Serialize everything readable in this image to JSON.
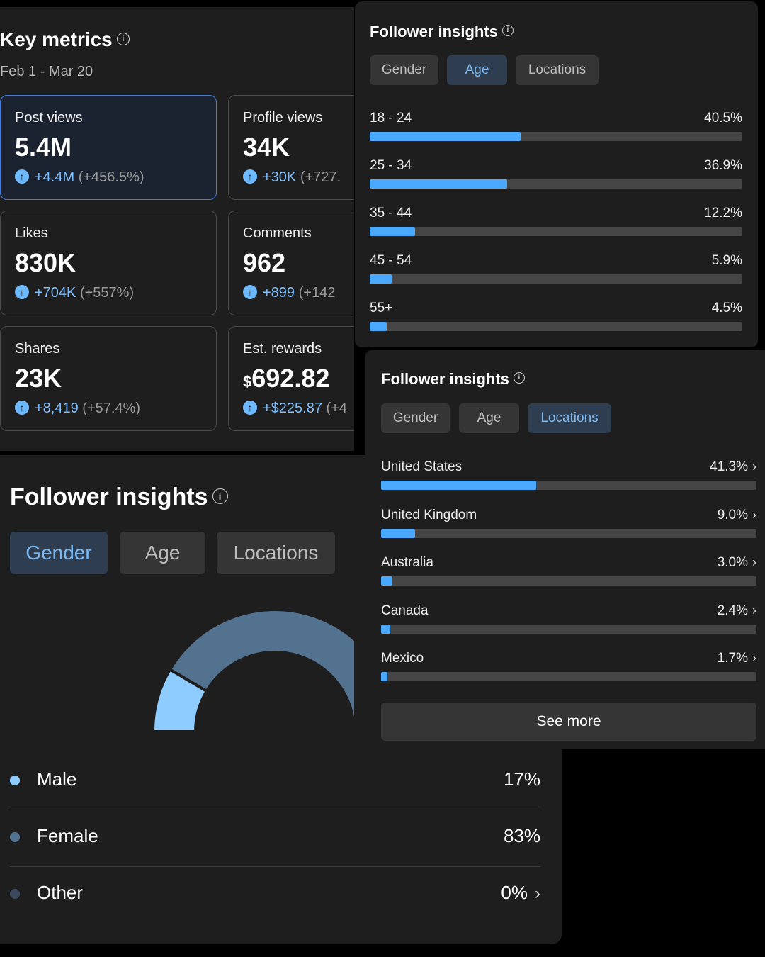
{
  "key_metrics": {
    "title": "Key metrics",
    "date_range": "Feb 1 - Mar 20",
    "cards": [
      {
        "label": "Post views",
        "value": "5.4M",
        "prefix": "",
        "change": "+4.4M",
        "change_pct": "(+456.5%)"
      },
      {
        "label": "Profile views",
        "value": "34K",
        "prefix": "",
        "change": "+30K",
        "change_pct": "(+727."
      },
      {
        "label": "Likes",
        "value": "830K",
        "prefix": "",
        "change": "+704K",
        "change_pct": "(+557%)"
      },
      {
        "label": "Comments",
        "value": "962",
        "prefix": "",
        "change": "+899",
        "change_pct": "(+142"
      },
      {
        "label": "Shares",
        "value": "23K",
        "prefix": "",
        "change": "+8,419",
        "change_pct": "(+57.4%)"
      },
      {
        "label": "Est. rewards",
        "value": "692.82",
        "prefix": "$",
        "change": "+$225.87",
        "change_pct": "(+4"
      }
    ]
  },
  "gender_panel": {
    "title": "Follower insights",
    "tabs": [
      "Gender",
      "Age",
      "Locations"
    ],
    "selected_tab": "Gender",
    "legend": [
      {
        "name": "Male",
        "pct": "17%",
        "value": 17,
        "color": "#8ecbff"
      },
      {
        "name": "Female",
        "pct": "83%",
        "value": 83,
        "color": "#52728f"
      },
      {
        "name": "Other",
        "pct": "0%",
        "value": 0,
        "color": "#3a4a5c"
      }
    ]
  },
  "age_panel": {
    "title": "Follower insights",
    "tabs": [
      "Gender",
      "Age",
      "Locations"
    ],
    "selected_tab": "Age",
    "rows": [
      {
        "label": "18 - 24",
        "pct": "40.5%",
        "value": 40.5
      },
      {
        "label": "25 - 34",
        "pct": "36.9%",
        "value": 36.9
      },
      {
        "label": "35 - 44",
        "pct": "12.2%",
        "value": 12.2
      },
      {
        "label": "45 - 54",
        "pct": "5.9%",
        "value": 5.9
      },
      {
        "label": "55+",
        "pct": "4.5%",
        "value": 4.5
      }
    ]
  },
  "locations_panel": {
    "title": "Follower insights",
    "tabs": [
      "Gender",
      "Age",
      "Locations"
    ],
    "selected_tab": "Locations",
    "rows": [
      {
        "label": "United States",
        "pct": "41.3%",
        "value": 41.3
      },
      {
        "label": "United Kingdom",
        "pct": "9.0%",
        "value": 9.0
      },
      {
        "label": "Australia",
        "pct": "3.0%",
        "value": 3.0
      },
      {
        "label": "Canada",
        "pct": "2.4%",
        "value": 2.4
      },
      {
        "label": "Mexico",
        "pct": "1.7%",
        "value": 1.7
      }
    ],
    "see_more_label": "See more"
  },
  "colors": {
    "accent": "#4aa8ff",
    "card_active_border": "#3f7ce0"
  }
}
